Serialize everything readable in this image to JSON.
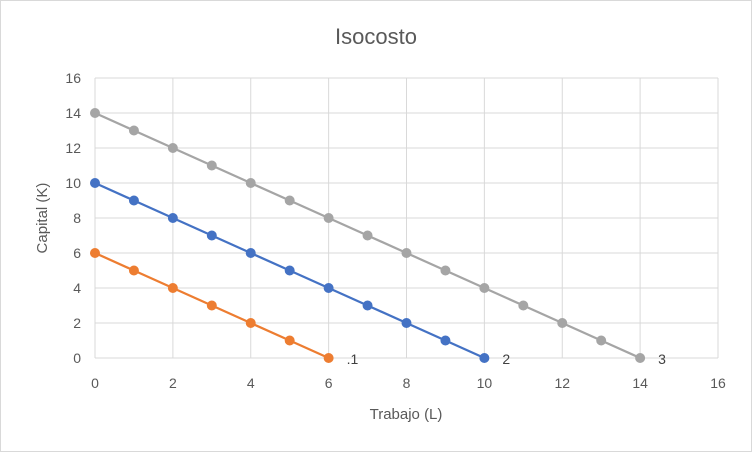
{
  "chart_data": {
    "type": "line",
    "title": "Isocosto",
    "xlabel": "Trabajo (L)",
    "ylabel": "Capital (K)",
    "xlim": [
      0,
      16
    ],
    "ylim": [
      0,
      16
    ],
    "xticks": [
      0,
      2,
      4,
      6,
      8,
      10,
      12,
      14,
      16
    ],
    "yticks": [
      0,
      2,
      4,
      6,
      8,
      10,
      12,
      14,
      16
    ],
    "grid": true,
    "series": [
      {
        "label": ".1",
        "color": "#ed7d31",
        "x": [
          0,
          1,
          2,
          3,
          4,
          5,
          6
        ],
        "y": [
          6,
          5,
          4,
          3,
          2,
          1,
          0
        ]
      },
      {
        "label": "2",
        "color": "#4472c4",
        "x": [
          0,
          1,
          2,
          3,
          4,
          5,
          6,
          7,
          8,
          9,
          10
        ],
        "y": [
          10,
          9,
          8,
          7,
          6,
          5,
          4,
          3,
          2,
          1,
          0
        ]
      },
      {
        "label": "3",
        "color": "#a5a5a5",
        "x": [
          0,
          1,
          2,
          3,
          4,
          5,
          6,
          7,
          8,
          9,
          10,
          11,
          12,
          13,
          14
        ],
        "y": [
          14,
          13,
          12,
          11,
          10,
          9,
          8,
          7,
          6,
          5,
          4,
          3,
          2,
          1,
          0
        ]
      }
    ]
  }
}
